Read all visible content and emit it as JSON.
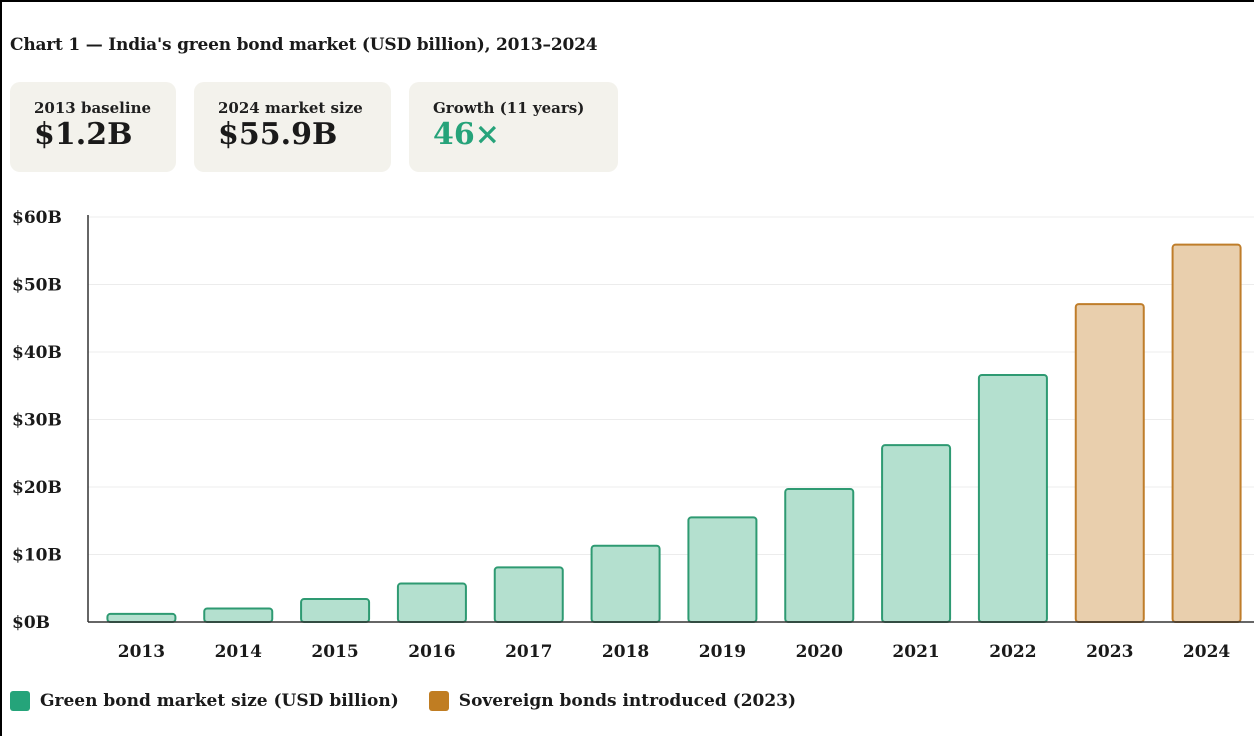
{
  "header": {
    "title": "Chart 1 — India's green bond market (USD billion), 2013–2024"
  },
  "cards": [
    {
      "label": "2013 baseline",
      "value": "$1.2B",
      "accent": false
    },
    {
      "label": "2024 market size",
      "value": "$55.9B",
      "accent": false
    },
    {
      "label": "Growth (11 years)",
      "value": "46×",
      "accent": true
    }
  ],
  "colors": {
    "green_fill": "#b4e0cf",
    "green_stroke": "#2e9a72",
    "green_swatch": "#25a47a",
    "gold_fill": "#e9cfad",
    "gold_stroke": "#bf7d2a",
    "gold_swatch": "#c07d22",
    "value_accent": "#26a37a",
    "card_bg": "#f3f2ec"
  },
  "chart_data": {
    "type": "bar",
    "title": "",
    "xlabel": "",
    "ylabel": "",
    "categories": [
      "2013",
      "2014",
      "2015",
      "2016",
      "2017",
      "2018",
      "2019",
      "2020",
      "2021",
      "2022",
      "2023",
      "2024"
    ],
    "series": [
      {
        "name": "Green bond market size (USD billion)",
        "values": [
          1.2,
          2.0,
          3.4,
          5.7,
          8.1,
          11.3,
          15.5,
          19.7,
          26.2,
          36.6,
          null,
          null
        ]
      },
      {
        "name": "Sovereign bonds introduced (2023)",
        "values": [
          null,
          null,
          null,
          null,
          null,
          null,
          null,
          null,
          null,
          null,
          47.1,
          55.9
        ]
      }
    ],
    "ylim": [
      0,
      60
    ],
    "yticks": [
      0,
      10,
      20,
      30,
      40,
      50,
      60
    ],
    "ytick_labels": [
      "$0B",
      "$10B",
      "$20B",
      "$30B",
      "$40B",
      "$50B",
      "$60B"
    ],
    "grid": true,
    "legend": "bottom-left"
  },
  "legend": {
    "items": [
      {
        "label": "Green bond market size (USD billion)"
      },
      {
        "label": "Sovereign bonds introduced (2023)"
      }
    ]
  }
}
